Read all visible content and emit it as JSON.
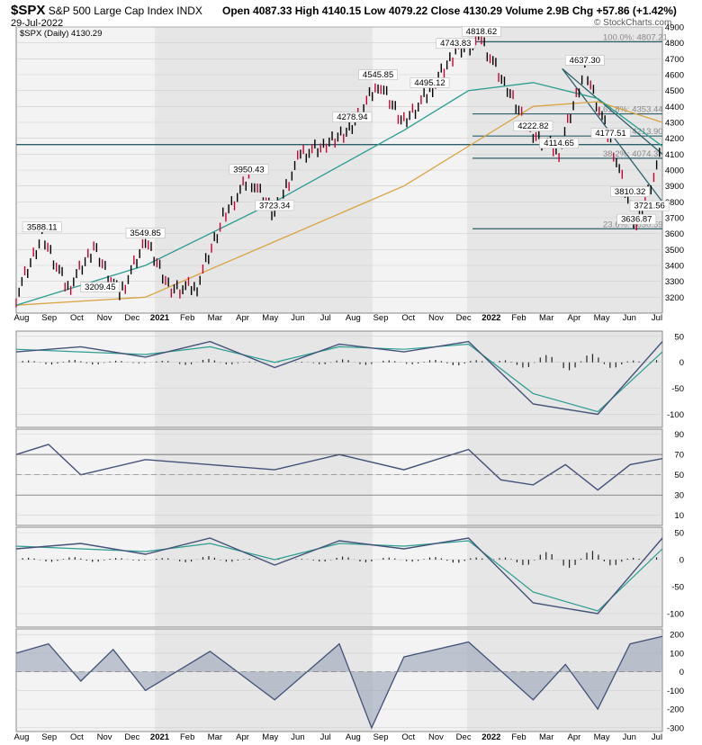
{
  "header": {
    "symbol": "$SPX",
    "name": "S&P 500 Large Cap Index",
    "exchange": "INDX",
    "date": "29-Jul-2022",
    "series_label": "$SPX (Daily) 4130.29",
    "ohlc": {
      "open_label": "Open",
      "open": "4087.33",
      "high_label": "High",
      "high": "4140.15",
      "low_label": "Low",
      "low": "4079.22",
      "close_label": "Close",
      "close": "4130.29",
      "volume_label": "Volume",
      "volume": "2.9B",
      "chg_label": "Chg",
      "chg": "+57.86 (+1.42%)"
    },
    "brand": "© StockCharts.com"
  },
  "colors": {
    "up": "#000000",
    "down": "#cc0033",
    "ma_short": "#2a9d8f",
    "ma_long": "#d9a441",
    "line": "#44527a",
    "band_a": "#e6e6e6",
    "band_b": "#f3f3f3",
    "guide": "#2b5f6b"
  },
  "chart_data": [
    {
      "type": "line",
      "title": "$SPX (Daily) 4130.29",
      "ylim": [
        3100,
        4900
      ],
      "yticks": [
        "4900",
        "4800",
        "4700",
        "4600",
        "4500",
        "4400",
        "4300",
        "4200",
        "4100",
        "4000",
        "3900",
        "3800",
        "3700",
        "3600",
        "3500",
        "3400",
        "3300",
        "3200"
      ],
      "xticks": [
        "Aug",
        "Sep",
        "Oct",
        "Nov",
        "Dec",
        "2021",
        "Feb",
        "Mar",
        "Apr",
        "May",
        "Jun",
        "Jul",
        "Aug",
        "Sep",
        "Oct",
        "Nov",
        "Dec",
        "2022",
        "Feb",
        "Mar",
        "Apr",
        "May",
        "Jun",
        "Jul"
      ],
      "close_series": {
        "name": "$SPX",
        "t": [
          0,
          4,
          8,
          12,
          16,
          20,
          24,
          28,
          32,
          36,
          40,
          44,
          48,
          52,
          56,
          60,
          64,
          68,
          72,
          76,
          80,
          84,
          88,
          92,
          96,
          100
        ],
        "values": [
          3200,
          3590,
          3250,
          3510,
          3209.45,
          3549.85,
          3250,
          3270,
          3700,
          3950.43,
          3723.34,
          4100,
          4150,
          4278.94,
          4545.85,
          4300,
          4495.12,
          4743.83,
          4818.62,
          4500,
          4222.82,
          4114.65,
          4637.3,
          4177.51,
          3636.87,
          4130.29
        ]
      },
      "ma_short": {
        "t": [
          0,
          20,
          40,
          60,
          70,
          80,
          90,
          100
        ],
        "values": [
          3150,
          3400,
          3800,
          4250,
          4500,
          4550,
          4450,
          4150
        ]
      },
      "ma_long": {
        "t": [
          0,
          20,
          40,
          60,
          70,
          80,
          90,
          100
        ],
        "values": [
          3150,
          3200,
          3550,
          3900,
          4150,
          4400,
          4430,
          4300
        ]
      },
      "price_labels": [
        {
          "text": "3588.11",
          "t": 4,
          "v": 3588.11
        },
        {
          "text": "3549.85",
          "t": 20,
          "v": 3549.85
        },
        {
          "text": "3209.45",
          "t": 13,
          "v": 3209.45
        },
        {
          "text": "3950.43",
          "t": 36,
          "v": 3950.43
        },
        {
          "text": "3723.34",
          "t": 40,
          "v": 3723.34
        },
        {
          "text": "4545.85",
          "t": 56,
          "v": 4545.85
        },
        {
          "text": "4278.94",
          "t": 52,
          "v": 4278.94
        },
        {
          "text": "4743.83",
          "t": 68,
          "v": 4743.83
        },
        {
          "text": "4495.12",
          "t": 64,
          "v": 4495.12
        },
        {
          "text": "4818.62",
          "t": 72,
          "v": 4818.62
        },
        {
          "text": "4222.82",
          "t": 80,
          "v": 4222.82
        },
        {
          "text": "4114.65",
          "t": 84,
          "v": 4114.65
        },
        {
          "text": "4637.30",
          "t": 88,
          "v": 4637.3
        },
        {
          "text": "4177.51",
          "t": 92,
          "v": 4177.51
        },
        {
          "text": "3810.32",
          "t": 95,
          "v": 3810.32
        },
        {
          "text": "3721.56",
          "t": 98,
          "v": 3721.56
        },
        {
          "text": "3636.87",
          "t": 96,
          "v": 3636.87
        }
      ],
      "retracements": [
        {
          "text": "100.0%: 4807.21",
          "v": 4807.21
        },
        {
          "text": "61.8%: 4353.44",
          "v": 4353.44
        },
        {
          "text": "50.0%: 4213.90",
          "v": 4213.9
        },
        {
          "text": "38.2%: 4074.3",
          "v": 4074.3
        },
        {
          "text": "23.6%: 3630.59",
          "v": 3630.59
        }
      ]
    },
    {
      "type": "line",
      "ylim": [
        -125,
        60
      ],
      "yticks": [
        "50",
        "0",
        "-50",
        "-100"
      ],
      "line": {
        "t": [
          0,
          10,
          20,
          30,
          40,
          50,
          60,
          70,
          80,
          90,
          100
        ],
        "values": [
          20,
          30,
          10,
          40,
          -10,
          35,
          20,
          40,
          -80,
          -100,
          40
        ]
      },
      "signal": {
        "t": [
          0,
          10,
          20,
          30,
          40,
          50,
          60,
          70,
          80,
          90,
          100
        ],
        "values": [
          25,
          20,
          15,
          30,
          0,
          30,
          25,
          35,
          -60,
          -95,
          20
        ]
      }
    },
    {
      "type": "line",
      "ylim": [
        0,
        95
      ],
      "yticks": [
        "90",
        "70",
        "50",
        "30",
        "10"
      ],
      "line": {
        "t": [
          0,
          5,
          10,
          20,
          30,
          40,
          50,
          60,
          70,
          75,
          80,
          85,
          90,
          95,
          100
        ],
        "values": [
          70,
          80,
          50,
          65,
          60,
          55,
          70,
          55,
          75,
          45,
          40,
          60,
          35,
          60,
          66
        ]
      }
    },
    {
      "type": "line",
      "ylim": [
        -125,
        60
      ],
      "yticks": [
        "50",
        "0",
        "-50",
        "-100"
      ],
      "line": {
        "t": [
          0,
          10,
          20,
          30,
          40,
          50,
          60,
          70,
          80,
          90,
          100
        ],
        "values": [
          20,
          30,
          10,
          40,
          -10,
          35,
          20,
          40,
          -80,
          -100,
          40
        ]
      },
      "signal": {
        "t": [
          0,
          10,
          20,
          30,
          40,
          50,
          60,
          70,
          80,
          90,
          100
        ],
        "values": [
          25,
          20,
          15,
          30,
          0,
          30,
          25,
          35,
          -60,
          -95,
          20
        ]
      }
    },
    {
      "type": "area",
      "ylim": [
        -320,
        230
      ],
      "yticks": [
        "200",
        "100",
        "0",
        "-100",
        "-200",
        "-300"
      ],
      "line": {
        "t": [
          0,
          5,
          10,
          15,
          20,
          30,
          40,
          50,
          55,
          60,
          70,
          80,
          85,
          90,
          95,
          100
        ],
        "values": [
          100,
          150,
          -50,
          120,
          -100,
          110,
          -150,
          150,
          -300,
          80,
          160,
          -150,
          40,
          -200,
          150,
          190
        ]
      }
    }
  ]
}
